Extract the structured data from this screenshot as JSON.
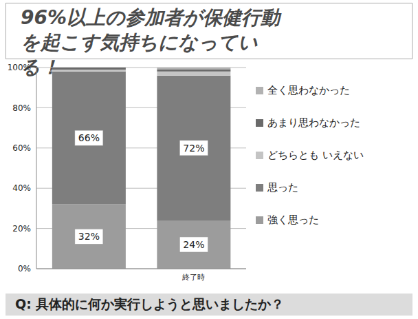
{
  "chart_data": {
    "type": "bar",
    "title": "96%以上の参加者が保健行動を起こす気持ちになっている！",
    "subtitle": "Q: 具体的に何か実行しようと思いましたか？",
    "categories": [
      null,
      "終了時"
    ],
    "stacked": true,
    "grid": true,
    "legend": "right",
    "ylim": [
      0,
      100
    ],
    "yticks": [
      {
        "value": 0,
        "label": "0%"
      },
      {
        "value": 20,
        "label": "20%"
      },
      {
        "value": 40,
        "label": "40%"
      },
      {
        "value": 60,
        "label": "60%"
      },
      {
        "value": 80,
        "label": "80%"
      },
      {
        "value": 100,
        "label": "100%"
      }
    ],
    "series": [
      {
        "name": "強く思った",
        "color": "#9c9c9c",
        "values": [
          32,
          24
        ],
        "data_labels": true,
        "value_labels": [
          "32%",
          "24%"
        ]
      },
      {
        "name": "思った",
        "color": "#7e7e7e",
        "values": [
          66,
          72
        ],
        "data_labels": true,
        "value_labels": [
          "66%",
          "72%"
        ]
      },
      {
        "name": "どちらとも いえない",
        "color": "#c4c4c4",
        "values": [
          1,
          2
        ]
      },
      {
        "name": "あまり思わなかった",
        "color": "#6a6a6a",
        "values": [
          1,
          1
        ]
      },
      {
        "name": "全く思わなかった",
        "color": "#b2b2b2",
        "values": [
          0,
          1
        ]
      }
    ]
  }
}
